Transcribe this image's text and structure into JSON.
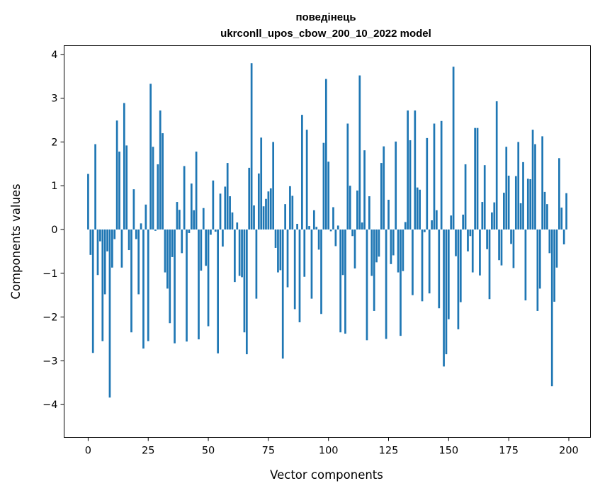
{
  "chart_data": {
    "type": "bar",
    "title_line1": "поведінець",
    "title_line2": "ukrconll_upos_cbow_200_10_2022 model",
    "xlabel": "Vector components",
    "ylabel": "Components values",
    "xlim": [
      -10,
      209
    ],
    "ylim": [
      -4.75,
      4.2
    ],
    "xticks": [
      0,
      25,
      50,
      75,
      100,
      125,
      150,
      175,
      200
    ],
    "xtick_labels": [
      "0",
      "25",
      "50",
      "75",
      "100",
      "125",
      "150",
      "175",
      "200"
    ],
    "yticks": [
      4,
      3,
      2,
      1,
      0,
      -1,
      -2,
      -3,
      -4
    ],
    "ytick_labels": [
      "4",
      "3",
      "2",
      "1",
      "0",
      "−1",
      "−2",
      "−3",
      "−4"
    ],
    "grid": false,
    "color": "#1f77b4",
    "x": [
      0,
      1,
      2,
      3,
      4,
      5,
      6,
      7,
      8,
      9,
      10,
      11,
      12,
      13,
      14,
      15,
      16,
      17,
      18,
      19,
      20,
      21,
      22,
      23,
      24,
      25,
      26,
      27,
      28,
      29,
      30,
      31,
      32,
      33,
      34,
      35,
      36,
      37,
      38,
      39,
      40,
      41,
      42,
      43,
      44,
      45,
      46,
      47,
      48,
      49,
      50,
      51,
      52,
      53,
      54,
      55,
      56,
      57,
      58,
      59,
      60,
      61,
      62,
      63,
      64,
      65,
      66,
      67,
      68,
      69,
      70,
      71,
      72,
      73,
      74,
      75,
      76,
      77,
      78,
      79,
      80,
      81,
      82,
      83,
      84,
      85,
      86,
      87,
      88,
      89,
      90,
      91,
      92,
      93,
      94,
      95,
      96,
      97,
      98,
      99,
      100,
      101,
      102,
      103,
      104,
      105,
      106,
      107,
      108,
      109,
      110,
      111,
      112,
      113,
      114,
      115,
      116,
      117,
      118,
      119,
      120,
      121,
      122,
      123,
      124,
      125,
      126,
      127,
      128,
      129,
      130,
      131,
      132,
      133,
      134,
      135,
      136,
      137,
      138,
      139,
      140,
      141,
      142,
      143,
      144,
      145,
      146,
      147,
      148,
      149,
      150,
      151,
      152,
      153,
      154,
      155,
      156,
      157,
      158,
      159,
      160,
      161,
      162,
      163,
      164,
      165,
      166,
      167,
      168,
      169,
      170,
      171,
      172,
      173,
      174,
      175,
      176,
      177,
      178,
      179,
      180,
      181,
      182,
      183,
      184,
      185,
      186,
      187,
      188,
      189,
      190,
      191,
      192,
      193,
      194,
      195,
      196,
      197,
      198,
      199
    ],
    "values": [
      1.27,
      -0.58,
      -2.82,
      1.95,
      -1.04,
      -0.27,
      -2.55,
      -1.48,
      -0.5,
      -3.84,
      -0.87,
      -0.22,
      2.49,
      1.78,
      -0.87,
      2.89,
      1.92,
      -0.47,
      -2.35,
      0.92,
      -0.22,
      -1.48,
      0.14,
      -2.72,
      0.57,
      -2.55,
      3.33,
      1.89,
      -0.03,
      1.49,
      2.72,
      2.2,
      -0.98,
      -1.35,
      -2.14,
      -0.63,
      -2.6,
      0.63,
      0.45,
      -0.54,
      1.45,
      -2.56,
      -0.08,
      1.05,
      0.44,
      1.78,
      -2.51,
      -0.94,
      0.49,
      -0.83,
      -2.21,
      -0.12,
      1.12,
      -0.05,
      -2.83,
      0.82,
      -0.39,
      0.98,
      1.52,
      0.76,
      0.39,
      -1.2,
      0.16,
      -1.06,
      -1.09,
      -2.35,
      -2.85,
      1.41,
      3.8,
      0.55,
      -1.58,
      1.28,
      2.1,
      0.53,
      0.7,
      0.87,
      0.94,
      2.0,
      -0.42,
      -0.98,
      -0.93,
      -2.95,
      0.58,
      -1.32,
      0.99,
      0.77,
      -1.82,
      0.13,
      -2.12,
      2.62,
      -1.08,
      2.28,
      0.08,
      -1.58,
      0.44,
      0.06,
      -0.46,
      -1.93,
      1.98,
      3.44,
      1.55,
      -0.04,
      0.51,
      -0.38,
      0.09,
      -2.35,
      -1.04,
      -2.38,
      2.42,
      1.0,
      -0.15,
      -0.89,
      0.89,
      3.52,
      0.16,
      1.81,
      -2.53,
      0.76,
      -1.06,
      -1.86,
      -0.75,
      -0.62,
      1.52,
      1.9,
      -2.5,
      0.68,
      -0.79,
      -0.59,
      2.01,
      -0.98,
      -2.43,
      -0.95,
      0.17,
      2.72,
      2.04,
      -1.5,
      2.72,
      0.96,
      0.91,
      -1.64,
      -0.06,
      2.09,
      -1.46,
      0.21,
      2.42,
      0.44,
      -1.8,
      2.48,
      -3.13,
      -2.85,
      -2.05,
      0.32,
      3.72,
      -0.61,
      -2.28,
      -1.66,
      0.34,
      1.49,
      -0.5,
      -0.15,
      -0.98,
      2.32,
      2.32,
      -1.05,
      0.63,
      1.47,
      -0.45,
      -1.59,
      0.39,
      0.62,
      2.93,
      -0.7,
      -0.82,
      0.84,
      1.89,
      1.23,
      -0.33,
      -0.88,
      1.22,
      2.0,
      0.6,
      1.54,
      -1.62,
      1.16,
      1.15,
      2.28,
      1.95,
      -1.86,
      -1.35,
      2.13,
      0.86,
      0.58,
      -0.54,
      -3.58,
      -1.65,
      -0.87,
      1.63,
      0.5,
      -0.34,
      0.83
    ]
  }
}
